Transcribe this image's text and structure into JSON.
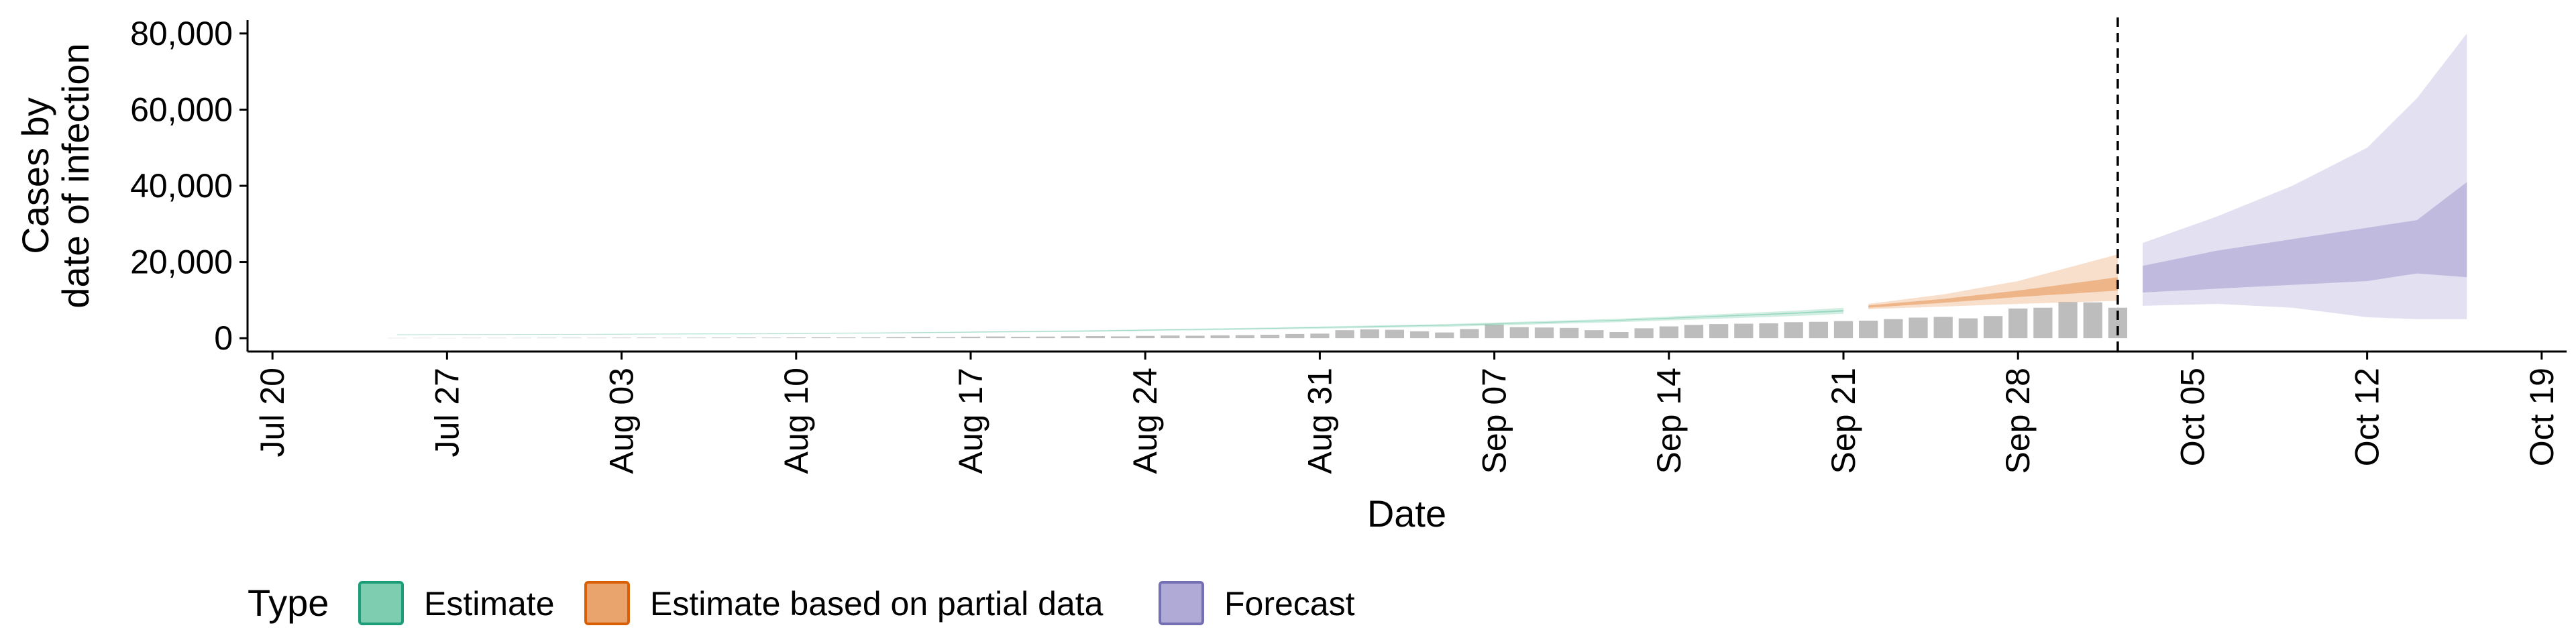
{
  "chart_data": {
    "type": "ribbon",
    "x_label": "Date",
    "y_label": [
      "Cases by",
      "date of infection"
    ],
    "legend_title": "Type",
    "xlim": [
      "Jul 19",
      "Oct 20"
    ],
    "xticks": [
      "Jul 20",
      "Jul 27",
      "Aug 03",
      "Aug 10",
      "Aug 17",
      "Aug 24",
      "Aug 31",
      "Sep 07",
      "Sep 14",
      "Sep 21",
      "Sep 28",
      "Oct 05",
      "Oct 12",
      "Oct 19"
    ],
    "ylim": [
      -3500,
      83500
    ],
    "yticks": [
      0,
      {
        "value": 20000,
        "label": "20,000"
      },
      {
        "value": 40000,
        "label": "40,000"
      },
      {
        "value": 60000,
        "label": "60,000"
      },
      {
        "value": 80000,
        "label": "80,000"
      }
    ],
    "vline": "Oct 02",
    "bars": {
      "color": "#bdbdbd",
      "x": [
        "Jul 25",
        "Jul 26",
        "Jul 27",
        "Jul 28",
        "Jul 29",
        "Jul 30",
        "Jul 31",
        "Aug 01",
        "Aug 02",
        "Aug 03",
        "Aug 04",
        "Aug 05",
        "Aug 06",
        "Aug 07",
        "Aug 08",
        "Aug 09",
        "Aug 10",
        "Aug 11",
        "Aug 12",
        "Aug 13",
        "Aug 14",
        "Aug 15",
        "Aug 16",
        "Aug 17",
        "Aug 18",
        "Aug 19",
        "Aug 20",
        "Aug 21",
        "Aug 22",
        "Aug 23",
        "Aug 24",
        "Aug 25",
        "Aug 26",
        "Aug 27",
        "Aug 28",
        "Aug 29",
        "Aug 30",
        "Aug 31",
        "Sep 01",
        "Sep 02",
        "Sep 03",
        "Sep 04",
        "Sep 05",
        "Sep 06",
        "Sep 07",
        "Sep 08",
        "Sep 09",
        "Sep 10",
        "Sep 11",
        "Sep 12",
        "Sep 13",
        "Sep 14",
        "Sep 15",
        "Sep 16",
        "Sep 17",
        "Sep 18",
        "Sep 19",
        "Sep 20",
        "Sep 21",
        "Sep 22",
        "Sep 23",
        "Sep 24",
        "Sep 25",
        "Sep 26",
        "Sep 27",
        "Sep 28",
        "Sep 29",
        "Sep 30",
        "Oct 01",
        "Oct 02"
      ],
      "values": [
        50,
        60,
        40,
        80,
        70,
        60,
        90,
        100,
        80,
        120,
        150,
        110,
        130,
        160,
        180,
        150,
        200,
        250,
        210,
        230,
        300,
        350,
        280,
        400,
        450,
        380,
        420,
        500,
        550,
        480,
        600,
        700,
        650,
        750,
        800,
        900,
        1100,
        1200,
        2100,
        2300,
        2200,
        1800,
        1500,
        2400,
        3600,
        2900,
        2800,
        2700,
        2100,
        1600,
        2600,
        3100,
        3500,
        3700,
        3800,
        3900,
        4200,
        4300,
        4500,
        4600,
        5000,
        5400,
        5600,
        5200,
        5800,
        7800,
        8000,
        9500,
        9400,
        8000
      ]
    },
    "series": [
      {
        "name": "Estimate",
        "color": "#1b9e77",
        "fill": "#7fcdb0",
        "x": [
          "Jul 25",
          "Aug 01",
          "Aug 08",
          "Aug 15",
          "Aug 22",
          "Aug 29",
          "Sep 05",
          "Sep 12",
          "Sep 19",
          "Sep 21"
        ],
        "lower90": [
          800,
          900,
          1000,
          1300,
          1700,
          2300,
          3000,
          4200,
          5800,
          6400
        ],
        "upper90": [
          1000,
          1100,
          1300,
          1600,
          2100,
          2800,
          3700,
          5100,
          7200,
          8000
        ],
        "lower50": [
          880,
          980,
          1120,
          1420,
          1850,
          2500,
          3300,
          4600,
          6400,
          7000
        ],
        "upper50": [
          940,
          1050,
          1200,
          1520,
          2000,
          2650,
          3500,
          4800,
          6700,
          7400
        ]
      },
      {
        "name": "Estimate based on partial data",
        "color": "#d95f02",
        "fill": "#e9a36c",
        "x": [
          "Sep 22",
          "Sep 25",
          "Sep 28",
          "Oct 02"
        ],
        "lower90": [
          7600,
          8300,
          9000,
          9800
        ],
        "upper90": [
          9000,
          11500,
          15000,
          22000
        ],
        "lower50": [
          8000,
          9300,
          10800,
          12500
        ],
        "upper50": [
          8600,
          10300,
          12500,
          16000
        ]
      },
      {
        "name": "Forecast",
        "color": "#7570b3",
        "fill": "#b0aad6",
        "x": [
          "Oct 03",
          "Oct 06",
          "Oct 09",
          "Oct 12",
          "Oct 14",
          "Oct 16"
        ],
        "lower90": [
          8500,
          9000,
          8000,
          5500,
          5000,
          5000
        ],
        "upper90": [
          25000,
          32000,
          40000,
          50000,
          63000,
          80000
        ],
        "lower50": [
          12000,
          13000,
          14000,
          15000,
          17000,
          16000
        ],
        "upper50": [
          19000,
          23000,
          26000,
          29000,
          31000,
          41000
        ]
      }
    ]
  }
}
